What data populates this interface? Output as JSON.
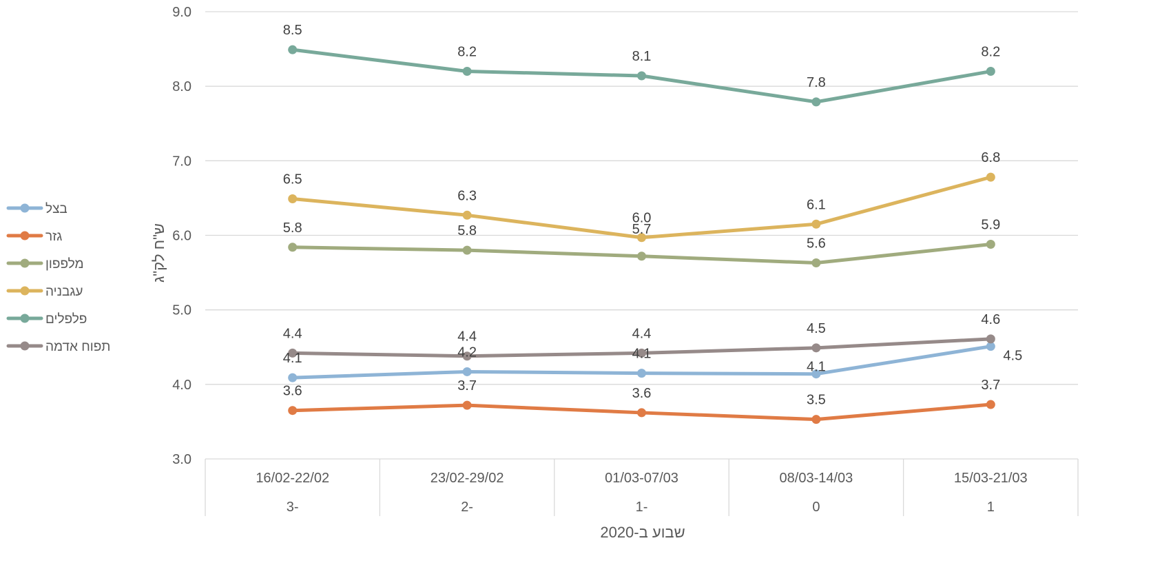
{
  "chart_data": {
    "type": "line",
    "title": "",
    "ylabel": "ש\"ח לק\"ג",
    "xlabel": "שבוע ב-2020",
    "ylim": [
      3.0,
      9.0
    ],
    "yticks": [
      "3.0",
      "4.0",
      "5.0",
      "6.0",
      "7.0",
      "8.0",
      "9.0"
    ],
    "categories": [
      "16/02-22/02",
      "23/02-29/02",
      "01/03-07/03",
      "08/03-14/03",
      "15/03-21/03"
    ],
    "week_numbers": [
      "3-",
      "2-",
      "1-",
      "0",
      "1"
    ],
    "grid": true,
    "legend_position": "left",
    "series": [
      {
        "name": "בצל",
        "color": "#8eb4d6",
        "values": [
          4.09,
          4.17,
          4.15,
          4.14,
          4.51
        ],
        "labels": [
          "4.1",
          "4.2",
          "4.1",
          "4.1",
          "4.5"
        ]
      },
      {
        "name": "גזר",
        "color": "#e07b45",
        "values": [
          3.65,
          3.72,
          3.62,
          3.53,
          3.73
        ],
        "labels": [
          "3.6",
          "3.7",
          "3.6",
          "3.5",
          "3.7"
        ]
      },
      {
        "name": "מלפפון",
        "color": "#a0ab7e",
        "values": [
          5.84,
          5.8,
          5.72,
          5.63,
          5.88
        ],
        "labels": [
          "5.8",
          "5.8",
          "5.7",
          "5.6",
          "5.9"
        ]
      },
      {
        "name": "עגבניה",
        "color": "#dcb45d",
        "values": [
          6.49,
          6.27,
          5.97,
          6.15,
          6.78
        ],
        "labels": [
          "6.5",
          "6.3",
          "6.0",
          "6.1",
          "6.8"
        ]
      },
      {
        "name": "פלפלים",
        "color": "#78a99a",
        "values": [
          8.49,
          8.2,
          8.14,
          7.79,
          8.2
        ],
        "labels": [
          "8.5",
          "8.2",
          "8.1",
          "7.8",
          "8.2"
        ]
      },
      {
        "name": "תפוח אדמה",
        "color": "#968a89",
        "values": [
          4.42,
          4.38,
          4.42,
          4.49,
          4.61
        ],
        "labels": [
          "4.4",
          "4.4",
          "4.4",
          "4.5",
          "4.6"
        ]
      }
    ]
  }
}
